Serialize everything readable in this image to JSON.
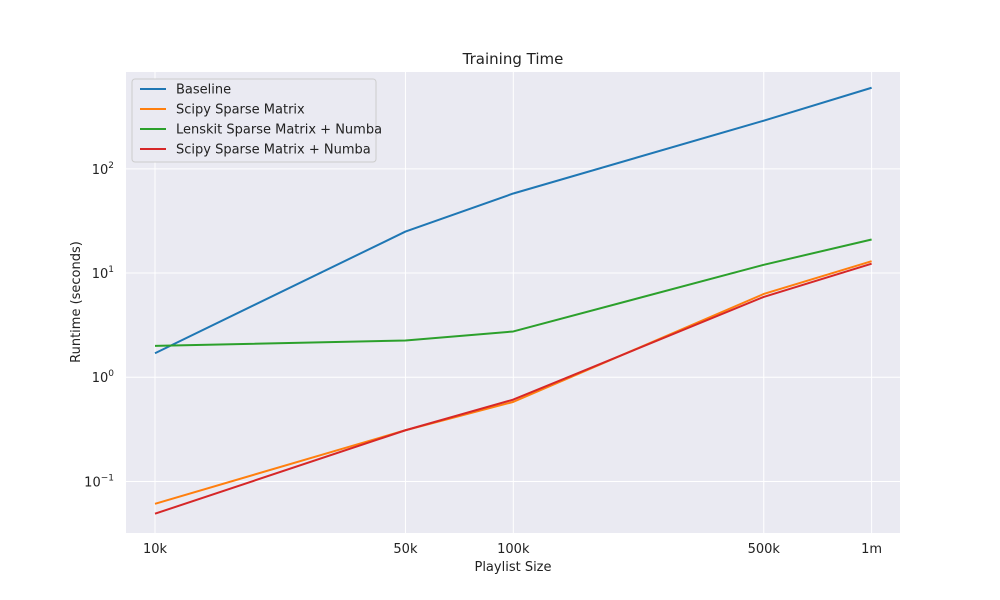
{
  "chart_data": {
    "type": "line",
    "title": "Training Time",
    "xlabel": "Playlist Size",
    "ylabel": "Runtime (seconds)",
    "x_scale": "log",
    "y_scale": "log",
    "x": [
      10000,
      50000,
      100000,
      500000,
      1000000
    ],
    "x_tick_labels": [
      "10k",
      "50k",
      "100k",
      "500k",
      "1m"
    ],
    "y_ticks": [
      {
        "base": "10",
        "exp": "−1",
        "value": 0.1
      },
      {
        "base": "10",
        "exp": "0",
        "value": 1
      },
      {
        "base": "10",
        "exp": "1",
        "value": 10
      },
      {
        "base": "10",
        "exp": "2",
        "value": 100
      }
    ],
    "xlim": [
      8300,
      1200000
    ],
    "ylim": [
      0.032,
      850
    ],
    "grid": true,
    "legend_position": "top-left",
    "series": [
      {
        "name": "Baseline",
        "color": "#1f77b4",
        "values": [
          1.7,
          25,
          58,
          290,
          600
        ]
      },
      {
        "name": "Scipy Sparse Matrix",
        "color": "#ff7f0e",
        "values": [
          0.061,
          0.31,
          0.58,
          6.3,
          13
        ]
      },
      {
        "name": "Lenskit Sparse Matrix + Numba",
        "color": "#2ca02c",
        "values": [
          2.0,
          2.25,
          2.75,
          12,
          21
        ]
      },
      {
        "name": "Scipy Sparse Matrix + Numba",
        "color": "#d62728",
        "values": [
          0.049,
          0.31,
          0.61,
          5.9,
          12.3
        ]
      }
    ]
  }
}
